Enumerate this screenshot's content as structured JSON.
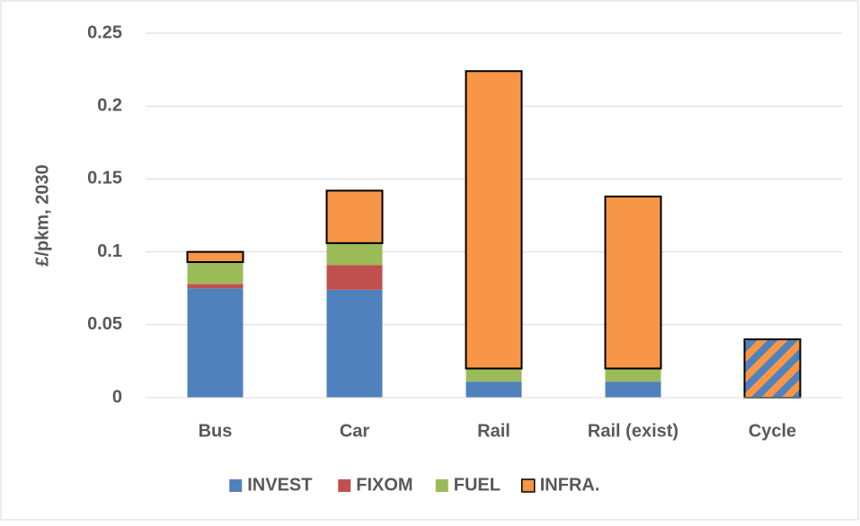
{
  "chart_data": {
    "type": "bar",
    "stacked": true,
    "y_label": "£/pkm, 2030",
    "categories": [
      "Bus",
      "Car",
      "Rail",
      "Rail (exist)",
      "Cycle"
    ],
    "series": [
      {
        "name": "INVEST",
        "color": "#4f81bd",
        "values": [
          0.075,
          0.074,
          0.011,
          0.011,
          null
        ]
      },
      {
        "name": "FIXOM",
        "color": "#c0504d",
        "values": [
          0.003,
          0.017,
          null,
          null,
          null
        ]
      },
      {
        "name": "FUEL",
        "color": "#9bbb59",
        "values": [
          0.015,
          0.015,
          0.009,
          0.009,
          null
        ]
      },
      {
        "name": "INFRA.",
        "color": "#f79646",
        "values": [
          0.007,
          0.036,
          0.204,
          0.118,
          0.04
        ]
      }
    ],
    "ylim": [
      0,
      0.25
    ],
    "yticks": [
      0,
      0.05,
      0.1,
      0.15,
      0.2,
      0.25
    ],
    "grid": true,
    "legend": "bottom"
  }
}
